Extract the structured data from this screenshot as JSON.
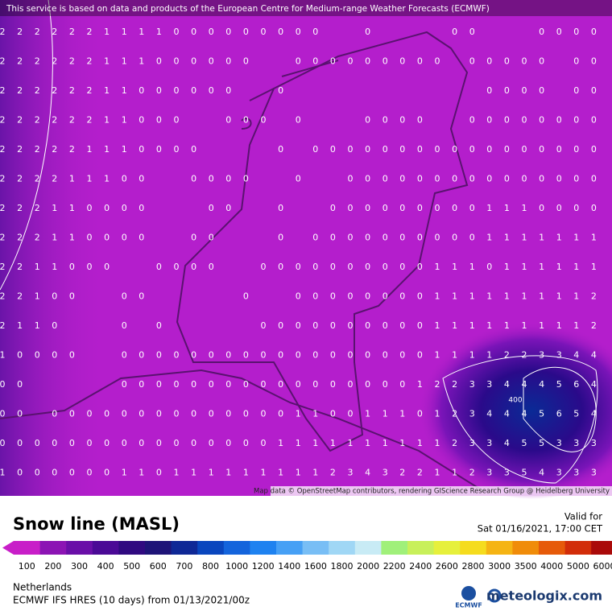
{
  "header": {
    "disclaimer": "This service is based on data and products of the European Centre for Medium-range Weather Forecasts (ECMWF)"
  },
  "map": {
    "attribution": "Map data © OpenStreetMap contributors, rendering GIScience Research Group @ Heidelberg University",
    "contour_label": "400"
  },
  "grid": {
    "rows": [
      [
        2,
        2,
        2,
        2,
        2,
        2,
        1,
        1,
        1,
        1,
        0,
        0,
        0,
        0,
        0,
        0,
        0,
        0,
        0,
        null,
        null,
        0,
        null,
        null,
        null,
        null,
        0,
        0,
        null,
        null,
        null,
        0,
        0,
        0,
        0
      ],
      [
        2,
        2,
        2,
        2,
        2,
        2,
        1,
        1,
        1,
        0,
        0,
        0,
        0,
        0,
        0,
        null,
        null,
        0,
        0,
        0,
        0,
        0,
        0,
        0,
        0,
        0,
        null,
        0,
        0,
        0,
        0,
        0,
        null,
        0,
        0
      ],
      [
        2,
        2,
        2,
        2,
        2,
        2,
        1,
        1,
        0,
        0,
        0,
        0,
        0,
        0,
        null,
        null,
        0,
        null,
        null,
        null,
        null,
        null,
        null,
        null,
        null,
        null,
        null,
        null,
        0,
        0,
        0,
        0,
        null,
        0,
        0
      ],
      [
        2,
        2,
        2,
        2,
        2,
        2,
        1,
        1,
        0,
        0,
        0,
        null,
        null,
        0,
        0,
        0,
        null,
        0,
        null,
        null,
        null,
        0,
        0,
        0,
        0,
        null,
        null,
        0,
        0,
        0,
        0,
        0,
        0,
        0,
        0
      ],
      [
        2,
        2,
        2,
        2,
        2,
        1,
        1,
        1,
        0,
        0,
        0,
        0,
        null,
        null,
        null,
        null,
        0,
        null,
        0,
        0,
        0,
        0,
        0,
        0,
        0,
        0,
        0,
        0,
        0,
        0,
        0,
        0,
        0,
        0,
        0
      ],
      [
        2,
        2,
        2,
        2,
        1,
        1,
        1,
        0,
        0,
        null,
        null,
        0,
        0,
        0,
        0,
        null,
        null,
        0,
        null,
        null,
        0,
        0,
        0,
        0,
        0,
        0,
        0,
        0,
        0,
        0,
        0,
        0,
        0,
        0,
        0
      ],
      [
        2,
        2,
        2,
        1,
        1,
        0,
        0,
        0,
        0,
        null,
        null,
        null,
        0,
        0,
        null,
        null,
        0,
        null,
        null,
        0,
        0,
        0,
        0,
        0,
        0,
        0,
        0,
        0,
        1,
        1,
        1,
        0,
        0,
        0,
        0
      ],
      [
        2,
        2,
        2,
        1,
        1,
        0,
        0,
        0,
        0,
        null,
        null,
        0,
        0,
        null,
        null,
        null,
        0,
        null,
        0,
        0,
        0,
        0,
        0,
        0,
        0,
        0,
        0,
        0,
        1,
        1,
        1,
        1,
        1,
        1,
        1
      ],
      [
        2,
        2,
        1,
        1,
        0,
        0,
        0,
        null,
        null,
        0,
        0,
        0,
        0,
        null,
        null,
        0,
        0,
        0,
        0,
        0,
        0,
        0,
        0,
        0,
        0,
        1,
        1,
        1,
        0,
        1,
        1,
        1,
        1,
        1,
        1
      ],
      [
        2,
        2,
        1,
        0,
        0,
        null,
        null,
        0,
        0,
        null,
        null,
        null,
        null,
        null,
        0,
        null,
        null,
        0,
        0,
        0,
        0,
        0,
        0,
        0,
        0,
        1,
        1,
        1,
        1,
        1,
        1,
        1,
        1,
        1,
        2
      ],
      [
        2,
        1,
        1,
        0,
        null,
        null,
        null,
        0,
        null,
        0,
        null,
        null,
        null,
        null,
        null,
        0,
        0,
        0,
        0,
        0,
        0,
        0,
        0,
        0,
        0,
        1,
        1,
        1,
        1,
        1,
        1,
        1,
        1,
        1,
        2
      ],
      [
        1,
        0,
        0,
        0,
        0,
        null,
        null,
        0,
        0,
        0,
        0,
        0,
        0,
        0,
        0,
        0,
        0,
        0,
        0,
        0,
        0,
        0,
        0,
        0,
        0,
        1,
        1,
        1,
        1,
        2,
        2,
        3,
        3,
        4,
        4
      ],
      [
        0,
        0,
        null,
        null,
        null,
        null,
        null,
        0,
        0,
        0,
        0,
        0,
        0,
        0,
        0,
        0,
        0,
        0,
        0,
        0,
        0,
        0,
        0,
        0,
        1,
        2,
        2,
        3,
        3,
        4,
        4,
        4,
        5,
        6,
        4
      ],
      [
        0,
        0,
        null,
        0,
        0,
        0,
        0,
        0,
        0,
        0,
        0,
        0,
        0,
        0,
        0,
        0,
        0,
        1,
        1,
        0,
        0,
        1,
        1,
        1,
        0,
        1,
        2,
        3,
        4,
        4,
        4,
        5,
        6,
        5,
        4
      ],
      [
        0,
        0,
        0,
        0,
        0,
        0,
        0,
        0,
        0,
        0,
        0,
        0,
        0,
        0,
        0,
        0,
        1,
        1,
        1,
        1,
        1,
        1,
        1,
        1,
        1,
        1,
        2,
        3,
        3,
        4,
        5,
        5,
        3,
        3,
        3
      ],
      [
        1,
        0,
        0,
        0,
        0,
        0,
        0,
        1,
        1,
        0,
        1,
        1,
        1,
        1,
        1,
        1,
        1,
        1,
        1,
        2,
        3,
        4,
        3,
        2,
        2,
        1,
        1,
        2,
        3,
        3,
        5,
        4,
        3,
        3,
        3
      ]
    ]
  },
  "legend": {
    "title": "Snow line (MASL)",
    "valid_label": "Valid for",
    "valid_time": "Sat 01/16/2021, 17:00 CET",
    "labels": [
      100,
      200,
      300,
      400,
      500,
      600,
      700,
      800,
      1000,
      1200,
      1400,
      1600,
      1800,
      2000,
      2200,
      2400,
      2600,
      2800,
      3000,
      3500,
      4000,
      5000,
      6000
    ],
    "colors": [
      "#c81ec8",
      "#8c14b4",
      "#6a0fa8",
      "#4b0a96",
      "#300a80",
      "#1e1478",
      "#0f2896",
      "#0a46be",
      "#1464dc",
      "#1e82f0",
      "#46a0f5",
      "#78bef5",
      "#a0d7f5",
      "#c8ebf5",
      "#a0f07a",
      "#c8f05a",
      "#e6f03c",
      "#f5dc1e",
      "#f5b414",
      "#f08c0a",
      "#e65a0a",
      "#d22d0a",
      "#aa0a0a",
      "#780000"
    ]
  },
  "footer": {
    "region": "Netherlands",
    "model": "ECMWF IFS HRES (10 days) from 01/13/2021/00z",
    "ecmwf": "ECMWF",
    "brand": "meteologix.com"
  }
}
